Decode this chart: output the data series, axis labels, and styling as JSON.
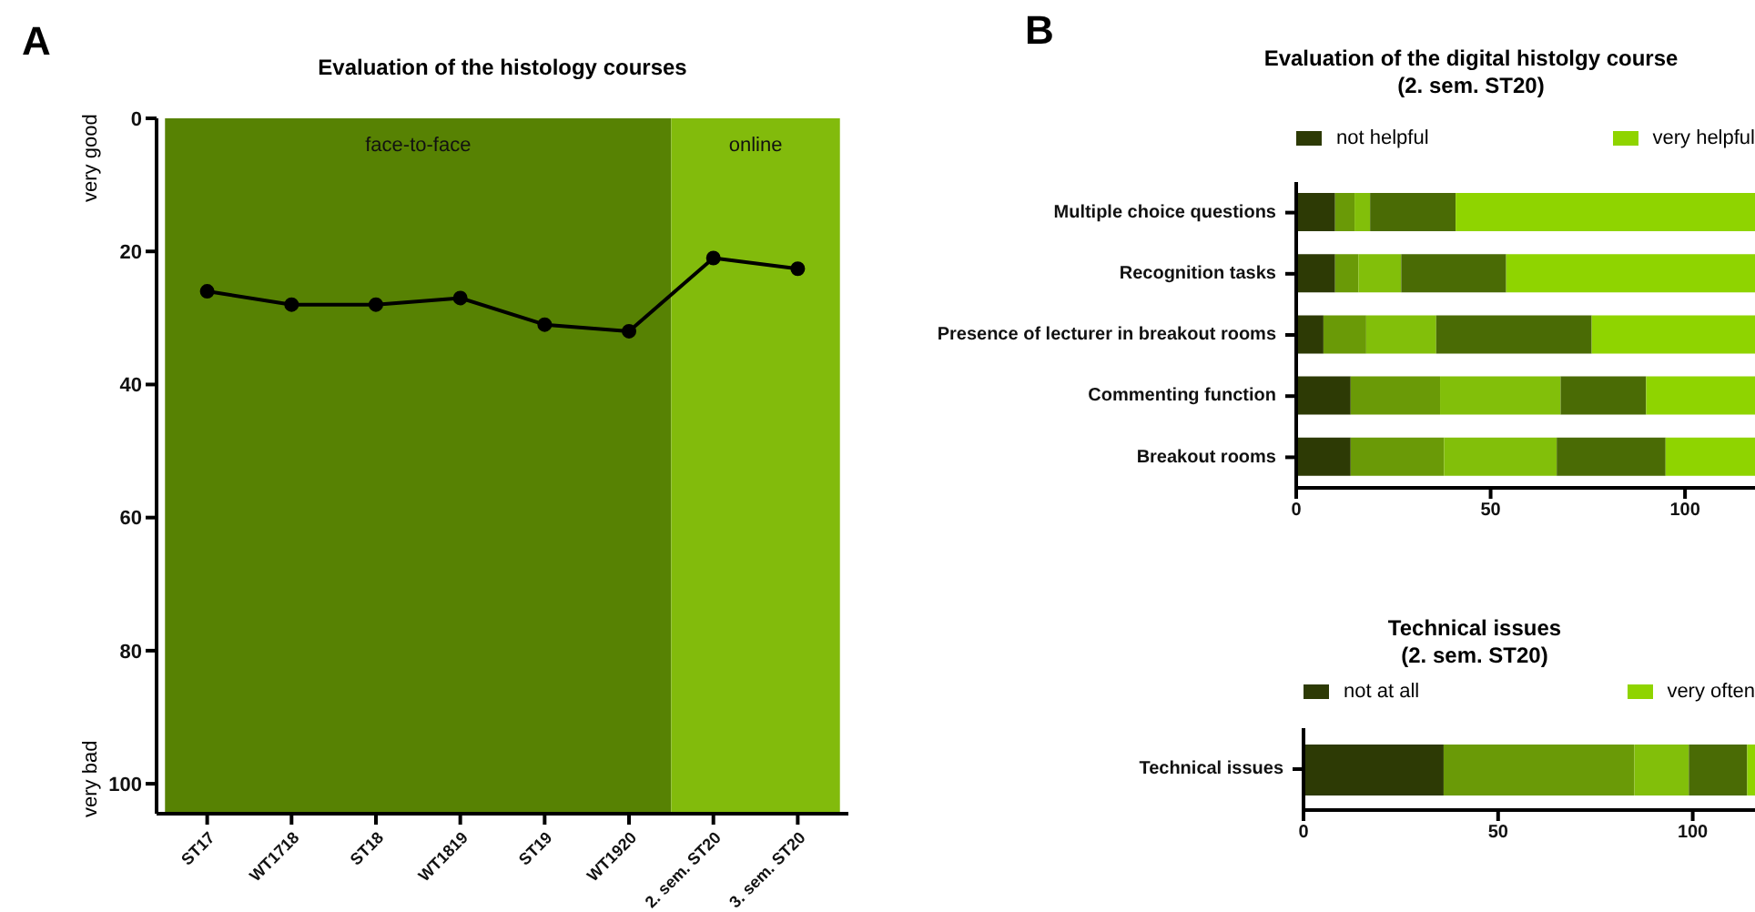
{
  "chart_data": [
    {
      "type": "line",
      "title": "Evaluation of the histology courses",
      "annotations": [
        "A",
        "very good",
        "very bad"
      ],
      "categories": [
        "ST17",
        "WT1718",
        "ST18",
        "WT1819",
        "ST19",
        "WT1920",
        "2. sem. ST20",
        "3. sem. ST20"
      ],
      "series": [
        {
          "color": "#000000",
          "values": [
            26,
            28,
            28,
            27,
            31,
            32,
            21,
            22.6
          ]
        }
      ],
      "ylim": [
        104.5,
        0
      ],
      "yticks": [
        0,
        20,
        40,
        60,
        80,
        100
      ],
      "bands": [
        {
          "axis": "x",
          "from": "ST17",
          "to": "WT1920",
          "label": "face-to-face",
          "color": "#578203"
        },
        {
          "axis": "x",
          "from": "2. sem. ST20",
          "to": "3. sem. ST20",
          "label": "online",
          "color": "#82bb0c"
        }
      ],
      "marker": "circle",
      "legend": false,
      "grid": false
    },
    {
      "type": "bar",
      "orientation": "horizontal",
      "stacked": true,
      "title": "Evaluation of the digital histolgy course",
      "subtitle": "(2. sem. ST20)",
      "annotations": [
        "B"
      ],
      "categories": [
        "Multiple choice questions",
        "Recognition tasks",
        "Presence of lecturer in breakout rooms",
        "Commenting function",
        "Breakout rooms"
      ],
      "series": [
        {
          "name": "not helpful",
          "color": "#2d3a05",
          "values": [
            10,
            10,
            7,
            14,
            14
          ]
        },
        {
          "color": "#6a9a07",
          "values": [
            5,
            6,
            11,
            23,
            24
          ]
        },
        {
          "color": "#82bf0a",
          "values": [
            4,
            11,
            18,
            31,
            29
          ]
        },
        {
          "color": "#4a6b05",
          "values": [
            22,
            27,
            40,
            22,
            28
          ]
        },
        {
          "name": "very helpful",
          "color": "#8fd400",
          "values": [
            77,
            64,
            42,
            28,
            23
          ]
        }
      ],
      "xlim": [
        0,
        118
      ],
      "xticks": [
        0,
        50,
        100
      ],
      "legend": "top",
      "grid": false
    },
    {
      "type": "bar",
      "orientation": "horizontal",
      "stacked": true,
      "title": "Technical issues",
      "subtitle": "(2. sem. ST20)",
      "categories": [
        "Technical issues"
      ],
      "series": [
        {
          "name": "not at all",
          "color": "#2d3a05",
          "values": [
            36
          ]
        },
        {
          "color": "#6a9a07",
          "values": [
            49
          ]
        },
        {
          "color": "#82bf0a",
          "values": [
            14
          ]
        },
        {
          "color": "#4a6b05",
          "values": [
            15
          ]
        },
        {
          "name": "very often",
          "color": "#8fd400",
          "values": [
            2
          ]
        }
      ],
      "xlim": [
        0,
        116
      ],
      "xticks": [
        0,
        50,
        100
      ],
      "legend": "top",
      "grid": false
    }
  ]
}
